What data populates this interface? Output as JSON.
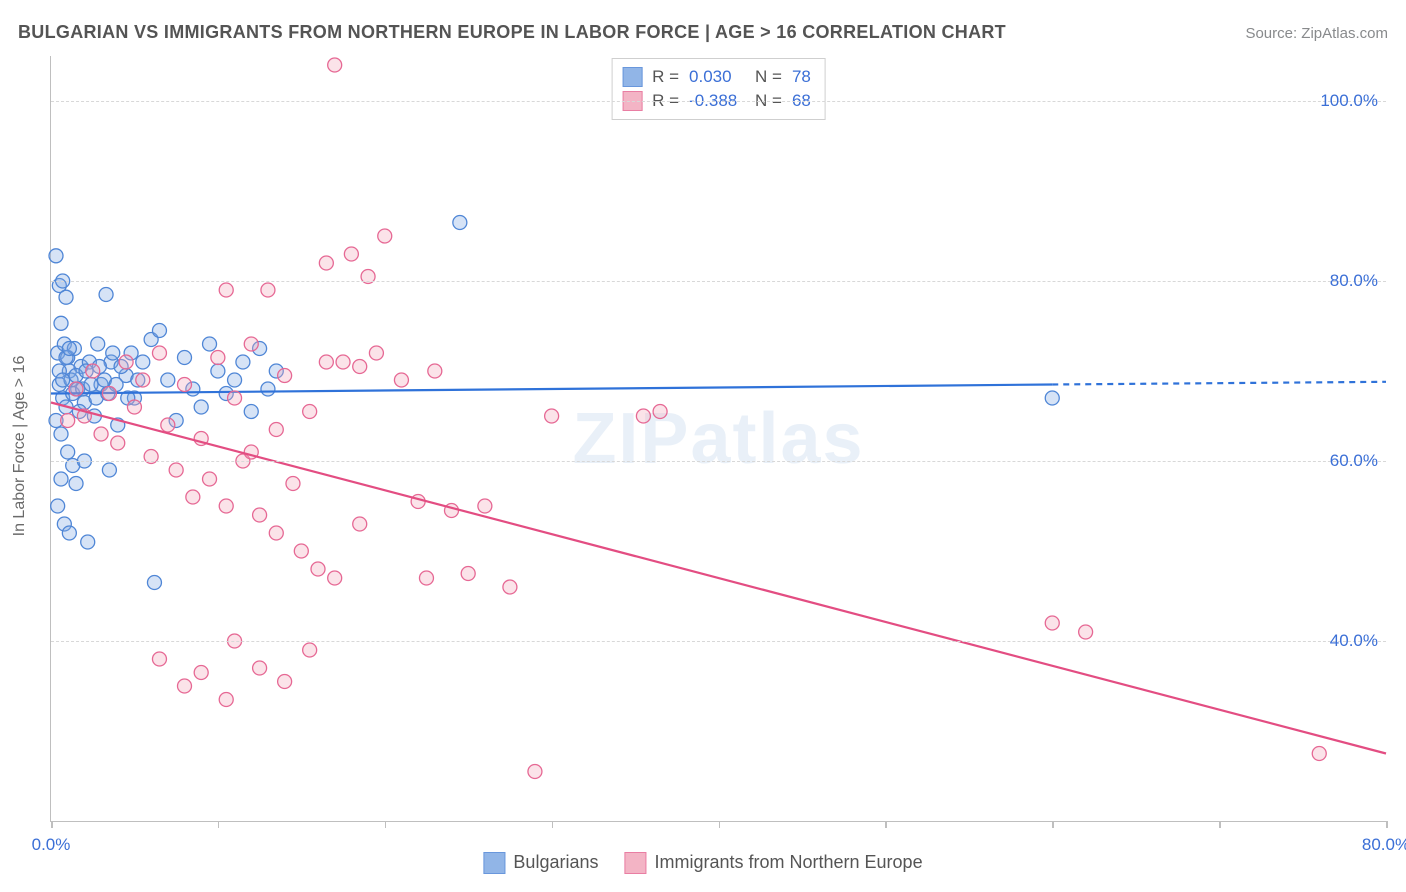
{
  "title": "BULGARIAN VS IMMIGRANTS FROM NORTHERN EUROPE IN LABOR FORCE | AGE > 16 CORRELATION CHART",
  "source": "Source: ZipAtlas.com",
  "watermark_zip": "ZIP",
  "watermark_atlas": "atlas",
  "y_axis_title": "In Labor Force | Age > 16",
  "chart": {
    "type": "scatter",
    "xlim": [
      0,
      80
    ],
    "ylim": [
      20,
      105
    ],
    "x_ticks": [
      0,
      10,
      20,
      30,
      40,
      50,
      60,
      70,
      80
    ],
    "x_tick_labels_show": [
      0,
      80
    ],
    "x_tick_labels": {
      "0": "0.0%",
      "80": "80.0%"
    },
    "y_gridlines": [
      40,
      60,
      80,
      100
    ],
    "y_tick_labels": {
      "40": "40.0%",
      "60": "60.0%",
      "80": "80.0%",
      "100": "100.0%"
    },
    "grid_color": "#d8d8d8",
    "axis_color": "#bfbfbf",
    "label_color": "#3b6fd6",
    "marker_radius": 7,
    "marker_opacity": 0.32,
    "series": [
      {
        "name": "Bulgarians",
        "color_fill": "#7ea9e3",
        "color_stroke": "#4f86d6",
        "R_label": "R =",
        "R": "0.030",
        "N_label": "N =",
        "N": "78",
        "trend": {
          "x1": 0,
          "y1": 67.5,
          "x2": 60,
          "y2": 68.5,
          "x2_ext": 80,
          "y2_ext": 68.8,
          "stroke": "#2f72d9",
          "width": 2.2,
          "dash_ext": "6,5"
        },
        "points": [
          [
            0.3,
            82.8
          ],
          [
            0.5,
            79.5
          ],
          [
            0.7,
            80.0
          ],
          [
            0.9,
            78.2
          ],
          [
            0.4,
            72.0
          ],
          [
            0.6,
            75.3
          ],
          [
            0.8,
            73.0
          ],
          [
            1.0,
            71.5
          ],
          [
            1.1,
            70.0
          ],
          [
            0.5,
            68.5
          ],
          [
            0.7,
            67.0
          ],
          [
            0.9,
            66.0
          ],
          [
            0.3,
            64.5
          ],
          [
            0.6,
            63.0
          ],
          [
            1.2,
            69.0
          ],
          [
            1.4,
            72.5
          ],
          [
            1.6,
            68.0
          ],
          [
            1.8,
            70.5
          ],
          [
            2.0,
            66.5
          ],
          [
            2.3,
            71.0
          ],
          [
            2.6,
            65.0
          ],
          [
            2.8,
            73.0
          ],
          [
            3.0,
            68.5
          ],
          [
            3.3,
            78.5
          ],
          [
            3.6,
            71.0
          ],
          [
            1.0,
            61.0
          ],
          [
            1.3,
            59.5
          ],
          [
            0.6,
            58.0
          ],
          [
            1.5,
            57.5
          ],
          [
            2.0,
            60.0
          ],
          [
            0.4,
            55.0
          ],
          [
            0.8,
            53.0
          ],
          [
            1.1,
            52.0
          ],
          [
            2.2,
            51.0
          ],
          [
            3.5,
            59.0
          ],
          [
            4.0,
            64.0
          ],
          [
            4.5,
            69.5
          ],
          [
            4.8,
            72.0
          ],
          [
            5.0,
            67.0
          ],
          [
            5.5,
            71.0
          ],
          [
            6.0,
            73.5
          ],
          [
            6.5,
            74.5
          ],
          [
            7.0,
            69.0
          ],
          [
            7.5,
            64.5
          ],
          [
            8.0,
            71.5
          ],
          [
            8.5,
            68.0
          ],
          [
            9.0,
            66.0
          ],
          [
            9.5,
            73.0
          ],
          [
            10.0,
            70.0
          ],
          [
            10.5,
            67.5
          ],
          [
            11.0,
            69.0
          ],
          [
            11.5,
            71.0
          ],
          [
            12.0,
            65.5
          ],
          [
            12.5,
            72.5
          ],
          [
            13.0,
            68.0
          ],
          [
            13.5,
            70.0
          ],
          [
            24.5,
            86.5
          ],
          [
            6.2,
            46.5
          ],
          [
            0.5,
            70.0
          ],
          [
            0.7,
            69.0
          ],
          [
            0.9,
            71.5
          ],
          [
            1.1,
            72.5
          ],
          [
            1.3,
            67.5
          ],
          [
            1.5,
            69.5
          ],
          [
            1.7,
            65.5
          ],
          [
            1.9,
            68.0
          ],
          [
            2.1,
            70.0
          ],
          [
            2.4,
            68.5
          ],
          [
            2.7,
            67.0
          ],
          [
            2.9,
            70.5
          ],
          [
            3.2,
            69.0
          ],
          [
            3.4,
            67.5
          ],
          [
            3.7,
            72.0
          ],
          [
            3.9,
            68.5
          ],
          [
            4.2,
            70.5
          ],
          [
            4.6,
            67.0
          ],
          [
            5.2,
            69.0
          ],
          [
            60.0,
            67.0
          ]
        ]
      },
      {
        "name": "Immigrants from Northern Europe",
        "color_fill": "#f2a7bc",
        "color_stroke": "#e66894",
        "R_label": "R =",
        "R": "-0.388",
        "N_label": "N =",
        "N": "68",
        "trend": {
          "x1": 0,
          "y1": 66.5,
          "x2": 80,
          "y2": 27.5,
          "stroke": "#e34d82",
          "width": 2.2
        },
        "points": [
          [
            1.0,
            64.5
          ],
          [
            1.5,
            68.0
          ],
          [
            2.0,
            65.0
          ],
          [
            2.5,
            70.0
          ],
          [
            3.0,
            63.0
          ],
          [
            3.5,
            67.5
          ],
          [
            4.0,
            62.0
          ],
          [
            4.5,
            71.0
          ],
          [
            5.0,
            66.0
          ],
          [
            5.5,
            69.0
          ],
          [
            6.0,
            60.5
          ],
          [
            6.5,
            72.0
          ],
          [
            7.0,
            64.0
          ],
          [
            7.5,
            59.0
          ],
          [
            8.0,
            68.5
          ],
          [
            8.5,
            56.0
          ],
          [
            9.0,
            62.5
          ],
          [
            9.5,
            58.0
          ],
          [
            10.0,
            71.5
          ],
          [
            10.5,
            55.0
          ],
          [
            11.0,
            67.0
          ],
          [
            11.5,
            60.0
          ],
          [
            12.0,
            73.0
          ],
          [
            12.5,
            54.0
          ],
          [
            13.0,
            79.0
          ],
          [
            13.5,
            52.0
          ],
          [
            14.0,
            69.5
          ],
          [
            14.5,
            57.5
          ],
          [
            15.0,
            50.0
          ],
          [
            15.5,
            65.5
          ],
          [
            16.0,
            48.0
          ],
          [
            16.5,
            71.0
          ],
          [
            17.0,
            104.0
          ],
          [
            18.0,
            83.0
          ],
          [
            18.5,
            70.5
          ],
          [
            19.0,
            80.5
          ],
          [
            19.5,
            72.0
          ],
          [
            20.0,
            85.0
          ],
          [
            21.0,
            69.0
          ],
          [
            22.0,
            55.5
          ],
          [
            22.5,
            47.0
          ],
          [
            23.0,
            70.0
          ],
          [
            24.0,
            54.5
          ],
          [
            25.0,
            47.5
          ],
          [
            6.5,
            38.0
          ],
          [
            8.0,
            35.0
          ],
          [
            9.0,
            36.5
          ],
          [
            10.5,
            33.5
          ],
          [
            11.0,
            40.0
          ],
          [
            12.5,
            37.0
          ],
          [
            14.0,
            35.5
          ],
          [
            15.5,
            39.0
          ],
          [
            17.0,
            47.0
          ],
          [
            18.5,
            53.0
          ],
          [
            26.0,
            55.0
          ],
          [
            27.5,
            46.0
          ],
          [
            29.0,
            25.5
          ],
          [
            30.0,
            65.0
          ],
          [
            10.5,
            79.0
          ],
          [
            16.5,
            82.0
          ],
          [
            17.5,
            71.0
          ],
          [
            35.5,
            65.0
          ],
          [
            36.5,
            65.5
          ],
          [
            60.0,
            42.0
          ],
          [
            62.0,
            41.0
          ],
          [
            76.0,
            27.5
          ],
          [
            12.0,
            61.0
          ],
          [
            13.5,
            63.5
          ]
        ]
      }
    ]
  },
  "legend_bottom": {
    "s1": "Bulgarians",
    "s2": "Immigrants from Northern Europe"
  }
}
